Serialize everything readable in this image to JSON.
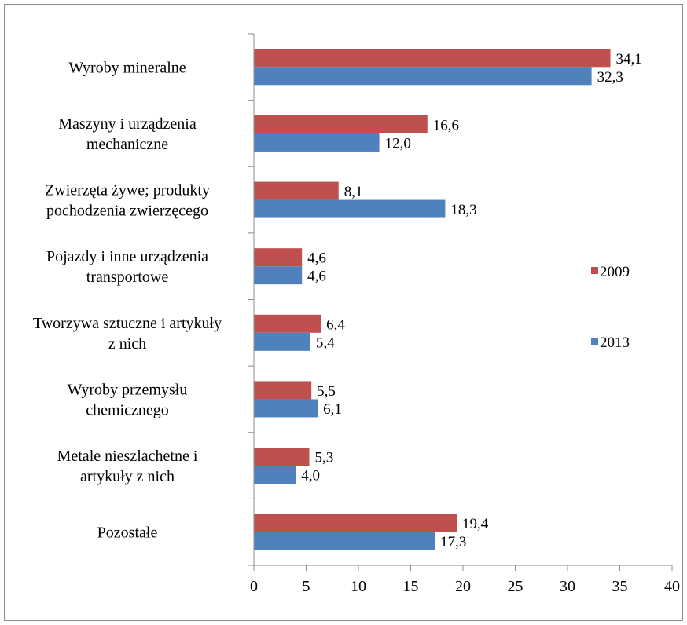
{
  "chart_data": {
    "type": "bar",
    "orientation": "horizontal",
    "categories": [
      [
        "Wyroby mineralne"
      ],
      [
        "Maszyny i urządzenia",
        "mechaniczne"
      ],
      [
        "Zwierzęta żywe; produkty",
        "pochodzenia zwierzęcego"
      ],
      [
        "Pojazdy i inne urządzenia",
        "transportowe"
      ],
      [
        "Tworzywa sztuczne i artykuły",
        "z nich"
      ],
      [
        "Wyroby przemysłu",
        "chemicznego"
      ],
      [
        "Metale nieszlachetne i",
        "artykuły z nich"
      ],
      [
        "Pozostałe"
      ]
    ],
    "series": [
      {
        "name": "2009",
        "color": "#c0504d",
        "values": [
          34.1,
          16.6,
          8.1,
          4.6,
          6.4,
          5.5,
          5.3,
          19.4
        ],
        "labels": [
          "34,1",
          "16,6",
          "8,1",
          "4,6",
          "6,4",
          "5,5",
          "5,3",
          "19,4"
        ]
      },
      {
        "name": "2013",
        "color": "#4f81bd",
        "values": [
          32.3,
          12.0,
          18.3,
          4.6,
          5.4,
          6.1,
          4.0,
          17.3
        ],
        "labels": [
          "32,3",
          "12,0",
          "18,3",
          "4,6",
          "5,4",
          "6,1",
          "4,0",
          "17,3"
        ]
      }
    ],
    "xlim": [
      0,
      40
    ],
    "xticks": [
      0,
      5,
      10,
      15,
      20,
      25,
      30,
      35,
      40
    ],
    "grid": false,
    "legend_position": "right"
  }
}
